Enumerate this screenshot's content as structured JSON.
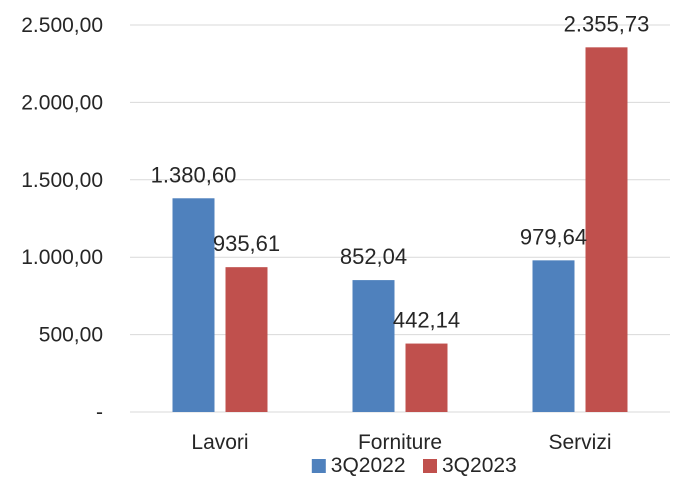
{
  "chart_data": {
    "type": "bar",
    "categories": [
      "Lavori",
      "Forniture",
      "Servizi"
    ],
    "series": [
      {
        "name": "3Q2022",
        "values": [
          1380.6,
          852.04,
          979.64
        ],
        "labels": [
          "1.380,60",
          "852,04",
          "979,64"
        ],
        "color": "#4f81bd"
      },
      {
        "name": "3Q2023",
        "values": [
          935.61,
          442.14,
          2355.73
        ],
        "labels": [
          "935,61",
          "442,14",
          "2.355,73"
        ],
        "color": "#c0504d"
      }
    ],
    "ylim": [
      0,
      2500
    ],
    "yticks": [
      0,
      500,
      1000,
      1500,
      2000,
      2500
    ],
    "ytick_labels": [
      "-",
      "500,00",
      "1.000,00",
      "1.500,00",
      "2.000,00",
      "2.500,00"
    ],
    "grid": true,
    "legend_position": "bottom",
    "title": "",
    "xlabel": "",
    "ylabel": ""
  }
}
